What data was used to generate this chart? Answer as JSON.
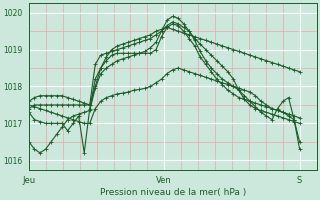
{
  "title": "Pression niveau de la mer( hPa )",
  "bg_color": "#cce8dc",
  "plot_bg_color": "#cce8dc",
  "grid_color_major": "#ffffff",
  "grid_color_minor": "#e8a8a8",
  "line_color": "#1a5c28",
  "ylim": [
    1015.75,
    1020.25
  ],
  "yticks": [
    1016,
    1017,
    1018,
    1019,
    1020
  ],
  "x_jeu": 0,
  "x_ven": 24,
  "x_s": 48,
  "xlim": [
    0,
    51
  ],
  "series": [
    [
      1017.4,
      1017.5,
      1017.5,
      1017.5,
      1017.5,
      1017.5,
      1017.5,
      1017.5,
      1017.5,
      1017.5,
      1017.5,
      1017.5,
      1018.0,
      1018.5,
      1018.8,
      1019.0,
      1019.1,
      1019.15,
      1019.2,
      1019.25,
      1019.3,
      1019.35,
      1019.4,
      1019.5,
      1019.55,
      1019.6,
      1019.55,
      1019.5,
      1019.45,
      1019.4,
      1019.35,
      1019.3,
      1019.25,
      1019.2,
      1019.15,
      1019.1,
      1019.05,
      1019.0,
      1018.95,
      1018.9,
      1018.85,
      1018.8,
      1018.75,
      1018.7,
      1018.65,
      1018.6,
      1018.55,
      1018.5,
      1018.45,
      1018.4
    ],
    [
      1017.3,
      1017.1,
      1017.05,
      1017.0,
      1017.0,
      1017.0,
      1017.0,
      1016.8,
      1017.0,
      1017.2,
      1016.2,
      1017.4,
      1018.2,
      1018.5,
      1018.7,
      1018.85,
      1018.9,
      1018.9,
      1018.9,
      1018.9,
      1018.9,
      1018.9,
      1018.9,
      1019.0,
      1019.35,
      1019.6,
      1019.7,
      1019.65,
      1019.5,
      1019.3,
      1019.1,
      1018.8,
      1018.6,
      1018.4,
      1018.2,
      1018.05,
      1017.9,
      1017.8,
      1017.7,
      1017.65,
      1017.6,
      1017.55,
      1017.5,
      1017.45,
      1017.4,
      1017.35,
      1017.3,
      1017.25,
      1017.2,
      1017.15
    ],
    [
      1017.6,
      1017.7,
      1017.75,
      1017.75,
      1017.75,
      1017.75,
      1017.75,
      1017.7,
      1017.65,
      1017.6,
      1017.55,
      1017.5,
      1018.6,
      1018.85,
      1018.9,
      1018.95,
      1019.0,
      1019.05,
      1019.1,
      1019.15,
      1019.2,
      1019.25,
      1019.3,
      1019.4,
      1019.5,
      1019.65,
      1019.75,
      1019.7,
      1019.6,
      1019.5,
      1019.3,
      1019.15,
      1019.0,
      1018.85,
      1018.7,
      1018.55,
      1018.4,
      1018.2,
      1017.9,
      1017.65,
      1017.5,
      1017.4,
      1017.35,
      1017.3,
      1017.25,
      1017.2,
      1017.15,
      1017.1,
      1017.05,
      1017.0
    ],
    [
      1017.5,
      1017.45,
      1017.4,
      1017.35,
      1017.3,
      1017.25,
      1017.2,
      1017.15,
      1017.1,
      1017.05,
      1017.0,
      1017.0,
      1017.4,
      1017.6,
      1017.7,
      1017.75,
      1017.8,
      1017.82,
      1017.85,
      1017.9,
      1017.92,
      1017.95,
      1018.0,
      1018.1,
      1018.2,
      1018.35,
      1018.45,
      1018.5,
      1018.45,
      1018.4,
      1018.35,
      1018.3,
      1018.25,
      1018.2,
      1018.15,
      1018.1,
      1018.05,
      1018.0,
      1017.95,
      1017.9,
      1017.85,
      1017.75,
      1017.6,
      1017.5,
      1017.4,
      1017.35,
      1017.3,
      1017.2,
      1017.1,
      1016.5
    ],
    [
      1016.5,
      1016.3,
      1016.2,
      1016.3,
      1016.5,
      1016.7,
      1016.9,
      1017.1,
      1017.2,
      1017.25,
      1017.3,
      1017.35,
      1017.95,
      1018.35,
      1018.5,
      1018.6,
      1018.7,
      1018.75,
      1018.8,
      1018.85,
      1018.9,
      1018.95,
      1019.05,
      1019.2,
      1019.5,
      1019.8,
      1019.9,
      1019.85,
      1019.7,
      1019.5,
      1019.25,
      1018.95,
      1018.7,
      1018.5,
      1018.35,
      1018.2,
      1018.1,
      1018.0,
      1017.9,
      1017.75,
      1017.6,
      1017.45,
      1017.3,
      1017.2,
      1017.1,
      1017.4,
      1017.6,
      1017.7,
      1017.1,
      1016.3
    ]
  ]
}
